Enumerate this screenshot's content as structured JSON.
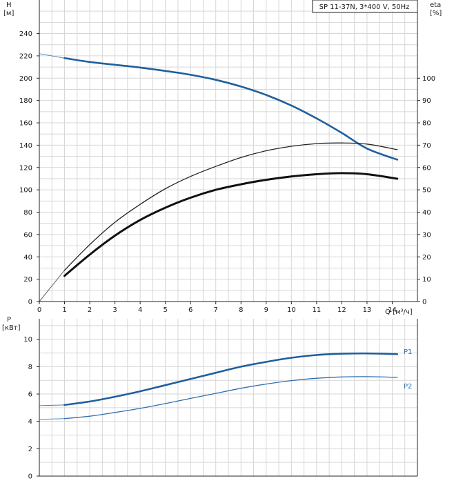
{
  "chart_data": [
    {
      "type": "line",
      "title": "SP 11-37N, 3*400 V, 50Hz",
      "ylabel": "H",
      "yunit": "[м]",
      "y2label": "eta",
      "y2unit": "[%]",
      "xlabel": "Q [м³/ч]",
      "xlim": [
        0,
        15
      ],
      "ylim": [
        0,
        270
      ],
      "y2lim": [
        0,
        135
      ],
      "xticks": [
        0,
        1,
        2,
        3,
        4,
        5,
        6,
        7,
        8,
        9,
        10,
        11,
        12,
        13,
        14
      ],
      "yticks": [
        0,
        20,
        40,
        60,
        80,
        100,
        120,
        140,
        160,
        180,
        200,
        220,
        240
      ],
      "y2ticks": [
        0,
        10,
        20,
        30,
        40,
        50,
        60,
        70,
        80,
        90,
        100
      ],
      "grid": true,
      "series": [
        {
          "axis": "y",
          "color": "#1f5f9e",
          "x": [
            0,
            1,
            2,
            3,
            4,
            5,
            6,
            7,
            8,
            9,
            10,
            11,
            12,
            13,
            14.2
          ],
          "values": [
            222,
            218,
            214.5,
            212,
            209.5,
            206.5,
            203,
            198.5,
            192.5,
            185,
            175.5,
            164,
            151,
            137,
            127
          ]
        },
        {
          "axis": "y2",
          "color": "#222222",
          "x": [
            0,
            1,
            2,
            3,
            4,
            5,
            6,
            7,
            8,
            9,
            10,
            11,
            12,
            13,
            14.2
          ],
          "values": [
            0,
            14,
            25.5,
            35.5,
            43.5,
            50.5,
            56,
            60.5,
            64.5,
            67.5,
            69.5,
            70.7,
            71,
            70.5,
            68
          ]
        },
        {
          "axis": "y2",
          "color": "#111111",
          "x": [
            1,
            2,
            3,
            4,
            5,
            6,
            7,
            8,
            9,
            10,
            11,
            12,
            13,
            14.2
          ],
          "values": [
            11.5,
            21,
            29.5,
            36.5,
            42,
            46.5,
            50,
            52.5,
            54.5,
            56,
            57,
            57.5,
            57,
            55
          ]
        }
      ]
    },
    {
      "type": "line",
      "ylabel": "P",
      "yunit": "[кВт]",
      "xlim": [
        0,
        15
      ],
      "ylim": [
        0,
        11.5
      ],
      "yticks": [
        0,
        2,
        4,
        6,
        8,
        10
      ],
      "grid": true,
      "series": [
        {
          "name": "P1",
          "color": "#1f5f9e",
          "x": [
            0,
            1,
            2,
            3,
            4,
            5,
            6,
            7,
            8,
            9,
            10,
            11,
            12,
            13,
            14.2
          ],
          "values": [
            5.15,
            5.2,
            5.45,
            5.8,
            6.2,
            6.65,
            7.1,
            7.55,
            8.0,
            8.35,
            8.65,
            8.85,
            8.95,
            8.97,
            8.92
          ]
        },
        {
          "name": "P2",
          "color": "#2f6fae",
          "x": [
            0,
            1,
            2,
            3,
            4,
            5,
            6,
            7,
            8,
            9,
            10,
            11,
            12,
            13,
            14.2
          ],
          "values": [
            4.15,
            4.2,
            4.38,
            4.65,
            4.95,
            5.3,
            5.68,
            6.05,
            6.42,
            6.73,
            6.98,
            7.15,
            7.25,
            7.27,
            7.22
          ]
        }
      ]
    }
  ]
}
